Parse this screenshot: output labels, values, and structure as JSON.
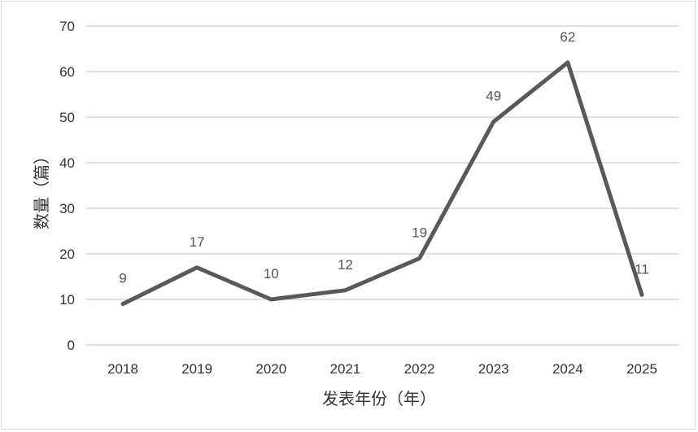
{
  "chart_data": {
    "type": "line",
    "categories": [
      "2018",
      "2019",
      "2020",
      "2021",
      "2022",
      "2023",
      "2024",
      "2025"
    ],
    "values": [
      9,
      17,
      10,
      12,
      19,
      49,
      62,
      11
    ],
    "data_labels": [
      "9",
      "17",
      "10",
      "12",
      "19",
      "49",
      "62",
      "11"
    ],
    "yticks": [
      "0",
      "10",
      "20",
      "30",
      "40",
      "50",
      "60",
      "70"
    ],
    "ylim": [
      0,
      70
    ],
    "xlabel": "发表年份（年）",
    "ylabel": "数量（篇）",
    "grid": true,
    "legend": "none",
    "colors": {
      "line": "#595959",
      "grid": "#d9d9d9"
    }
  }
}
